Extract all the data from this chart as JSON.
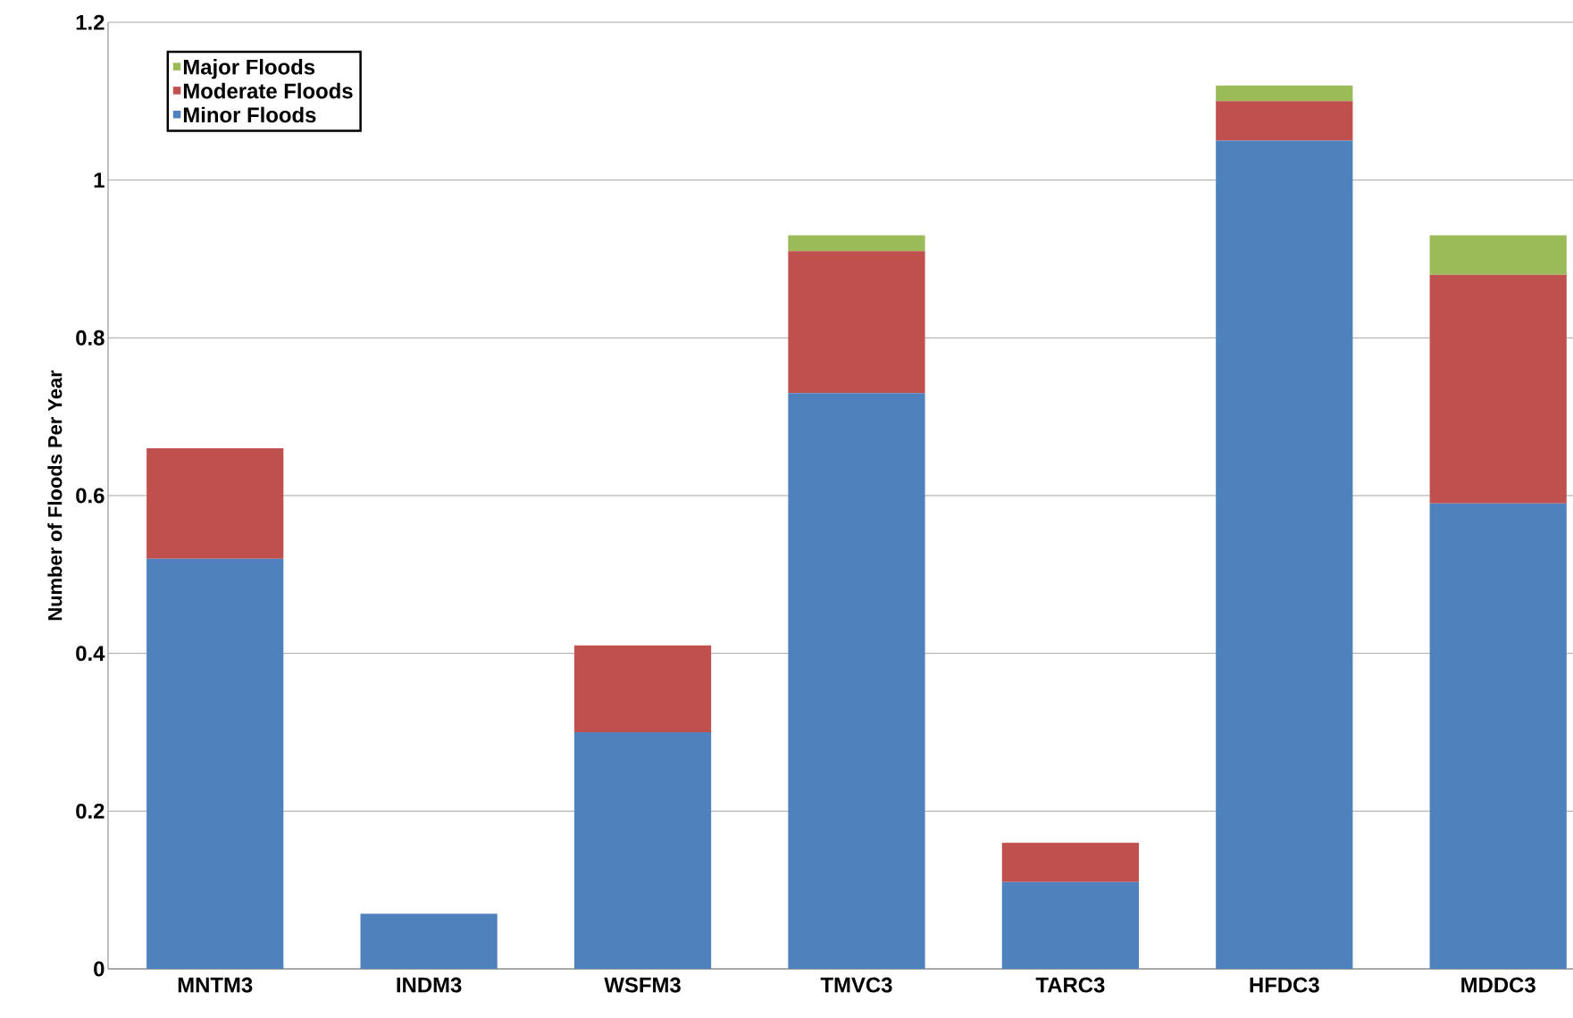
{
  "chart_data": {
    "type": "bar",
    "stacked": true,
    "ylabel": "Number of Floods Per Year",
    "categories": [
      "MNTM3",
      "INDM3",
      "WSFM3",
      "TMVC3",
      "TARC3",
      "HFDC3",
      "MDDC3"
    ],
    "series": [
      {
        "name": "Minor Floods",
        "color": "#4f81bd",
        "values": [
          0.52,
          0.07,
          0.3,
          0.73,
          0.11,
          1.05,
          0.59
        ]
      },
      {
        "name": "Moderate Floods",
        "color": "#c0504d",
        "values": [
          0.14,
          0,
          0.11,
          0.18,
          0.05,
          0.05,
          0.29
        ]
      },
      {
        "name": "Major Floods",
        "color": "#9bbb59",
        "values": [
          0,
          0,
          0,
          0.02,
          0,
          0.02,
          0.05
        ]
      }
    ],
    "ylim": [
      0,
      1.2
    ],
    "yticks": [
      0,
      0.2,
      0.4,
      0.6,
      0.8,
      1,
      1.2
    ],
    "grid": "y",
    "legend": "top left"
  }
}
